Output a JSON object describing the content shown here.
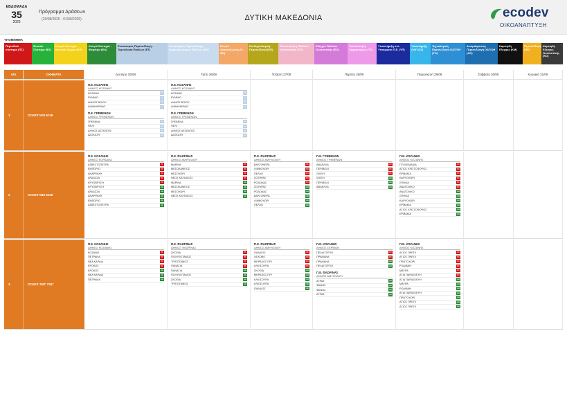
{
  "header": {
    "week_label": "ΕΒΔΟΜΑΔΑ",
    "week_number": "35",
    "year": "2025",
    "program_title": "Πρόγραμμα Δράσεων",
    "program_dates": "(25/08/2025 - 01/09/2025)",
    "region": "ΔΥΤΙΚΗ ΜΑΚΕΔΟΝΙΑ",
    "logo_word": "ecodev",
    "logo_sub": "ΟΙΚΟΑΝΑΠΤΥΞΗ",
    "logo_color": "#1d3a6e",
    "logo_accent": "#2e9a47"
  },
  "legend": {
    "title": "ΥΠΟΜΝΗΜΑ",
    "items": [
      {
        "label": "Περιοδικό σύστημα (ΠΣ)",
        "bg": "#d01818",
        "fg": "#ffffff",
        "w": 40
      },
      {
        "label": "Φυσικό Σύστημα (ΦΣ)",
        "bg": "#27b33b",
        "fg": "#ffffff",
        "w": 32
      },
      {
        "label": "Κινητό Σύστημα Κουτιού Χώρου (ΚΧ)",
        "bg": "#f2d21a",
        "fg": "#ffffff",
        "w": 48
      },
      {
        "label": "Κινητό Σύστημα - Φαρέτρα (ΦΑ)",
        "bg": "#2e8b3a",
        "fg": "#ffffff",
        "w": 42
      },
      {
        "label": "Εντοπισμός Περισυλλογή - Τεχνολογία Παιδιών (ΕΤ)",
        "bg": "#b9cfe6",
        "fg": "#222222",
        "w": 74
      },
      {
        "label": "Εντοπισμός Περισυλλογή Ανακυκλώσιμων Παιδιών (ΕΑ)",
        "bg": "#c9dbee",
        "fg": "#ffffff",
        "w": 74
      },
      {
        "label": "Κινητό Ανακύκλωσης (Κ-ΑΝ)",
        "bg": "#f4a867",
        "fg": "#ffffff",
        "w": 42
      },
      {
        "label": "Επιδημιολογική Περισυλλογή (ΕΠ)",
        "bg": "#b4a71c",
        "fg": "#ffffff",
        "w": 44
      },
      {
        "label": "Τακτοποίηση Παιδιών Ουσιαστικής (ΤΟ)",
        "bg": "#f2b6c9",
        "fg": "#ffffff",
        "w": 52
      },
      {
        "label": "Ελεγχοι Παιδιών Ουσιαστικής (ΕΟ)",
        "bg": "#d47ad9",
        "fg": "#ffffff",
        "w": 48
      },
      {
        "label": "Τακτοποίηση Σχηματισμών (ΤΣ)",
        "bg": "#ee9ae8",
        "fg": "#ffffff",
        "w": 42
      },
      {
        "label": "Υποστήριξη στο Υπουργείο Π.Ε. (ΥΠ)",
        "bg": "#1b2a9c",
        "fg": "#ffffff",
        "w": 48
      },
      {
        "label": "Υποστήριξη ΟΛΥ (ΟΣ)",
        "bg": "#37b6ea",
        "fg": "#ffffff",
        "w": 30
      },
      {
        "label": "Τεχνολογική Περισυλλογή OAT/OH (ΤΟ)",
        "bg": "#2f8fd4",
        "fg": "#ffffff",
        "w": 50
      },
      {
        "label": "Απομάκρυνση Περισυλλογή OAT/OH (ΑΟ)",
        "bg": "#1f6fb0",
        "fg": "#ffffff",
        "w": 47
      },
      {
        "label": "Καμπηλή Ελεγχος (ΚΜ)",
        "bg": "#111111",
        "fg": "#ffffff",
        "w": 36
      },
      {
        "label": "Περισυλλογή (ΠΕ)",
        "bg": "#f0b020",
        "fg": "#ffffff",
        "w": 27
      },
      {
        "label": "Καμπηλή Ελεγχος Ουσιαστικής (ΚΟ)",
        "bg": "#3a3a3a",
        "fg": "#ffffff",
        "w": 31
      }
    ]
  },
  "schedule": {
    "col_aa": "Α/Α",
    "col_vehicle": "ΟΧΗΜΑΤΑ",
    "days": [
      {
        "label": "Δευτέρα 25/08",
        "w": 120
      },
      {
        "label": "Τρίτη 26/08",
        "w": 120
      },
      {
        "label": "Τετάρτη 27/08",
        "w": 90
      },
      {
        "label": "Πέμπτη 28/08",
        "w": 120
      },
      {
        "label": "Παρασκευή 29/08",
        "w": 98
      },
      {
        "label": "Σάββατο 30/08",
        "w": 72
      },
      {
        "label": "Κυριακή 31/08",
        "w": 71
      }
    ],
    "rows": [
      {
        "aa": "1",
        "vehicle": "ΟΟΧΕΤ ΝΟΙ 9748",
        "h": 102,
        "days": [
          [
            {
              "unit": "Π.Ε. ΚΟΖΑΝΗΣ",
              "muni": "ΔΗΜΟΣ ΚΟΖΑΝΗΣ",
              "stops": [
                {
                  "n": "ΚΟΖΑΝΗ",
                  "t": "ΕΑ"
                },
                {
                  "n": "ΡΥΜΝΙΟ",
                  "t": "ΕΑ"
                },
                {
                  "n": "ΔΗΜΟΣ ΒΟΙΟΥ",
                  "t": "ΕΑ"
                },
                {
                  "n": "ΑΙΑΝΗ/ΚΕΝΑΣ",
                  "t": "ΕΑ"
                }
              ]
            },
            {
              "unit": "Π.Ε. ΓΡΕΒΕΝΩΝ",
              "muni": "ΔΗΜΟΣ ΓΡΕΒΕΝΩΝ",
              "stops": [
                {
                  "n": "ΓΡΕΒΕΝΑ",
                  "t": "ΕΑ"
                },
                {
                  "n": "ΦΕΛΙ",
                  "t": "ΕΑ"
                },
                {
                  "n": "ΔΗΜΟΣ ΔΕΣΚΑΤΗΣ",
                  "t": "ΕΑ"
                },
                {
                  "n": "ΔΕΣΚΑΤΗ",
                  "t": "ΕΑ"
                }
              ]
            }
          ],
          [
            {
              "unit": "Π.Ε. ΚΟΖΑΝΗΣ",
              "muni": "ΔΗΜΟΣ ΚΟΖΑΝΗΣ",
              "stops": [
                {
                  "n": "ΚΟΖΑΝΗ",
                  "t": "ΕΑ"
                },
                {
                  "n": "ΡΥΜΝΙΟ",
                  "t": "ΕΑ"
                },
                {
                  "n": "ΔΗΜΟΣ ΒΟΙΟΥ",
                  "t": "ΕΑ"
                },
                {
                  "n": "ΑΙΑΝΗ/ΚΕΝΑΣ",
                  "t": "ΕΑ"
                }
              ]
            },
            {
              "unit": "Π.Ε. ΓΡΕΒΕΝΩΝ",
              "muni": "ΔΗΜΟΣ ΓΡΕΒΕΝΩΝ",
              "stops": [
                {
                  "n": "ΓΡΕΒΕΝΑ",
                  "t": "ΕΑ"
                },
                {
                  "n": "ΦΕΛΙ",
                  "t": "ΕΑ"
                },
                {
                  "n": "ΔΗΜΟΣ ΔΕΣΚΑΤΗΣ",
                  "t": "ΕΑ"
                },
                {
                  "n": "ΔΕΣΚΑΤΗ",
                  "t": "ΕΑ"
                }
              ]
            }
          ],
          [],
          [],
          [],
          [],
          []
        ]
      },
      {
        "aa": "2",
        "vehicle": "ΟΟΧΕΤ ΜΕΙ 6438",
        "h": 126,
        "days": [
          [
            {
              "unit": "Π.Ε. ΚΟΖΑΝΗΣ",
              "muni": "ΔΗΜΟΣ ΕΟΡΔΑΙΑΣ",
              "stops": [
                {
                  "n": "ΑΣΒΕΣΤΟΠΕΤΡΑ",
                  "t": "ΠΣ"
                },
                {
                  "n": "ΕΜΠΟΡΙΟ",
                  "t": "ΠΣ"
                },
                {
                  "n": "ΑΝΑΡΡΑΧΗ",
                  "t": "ΠΣ"
                },
                {
                  "n": "ΑΡΔΑΣΣΑ",
                  "t": "ΠΣ"
                },
                {
                  "n": "ΚΡΥΟΒΡΥΣΗ",
                  "t": "ΠΣ"
                },
                {
                  "n": "ΚΡΥΟΒΡΥΣΗ",
                  "t": "ΑΘ"
                },
                {
                  "n": "ΑΡΔΑΣΣΑ",
                  "t": "ΑΘ"
                },
                {
                  "n": "ΑΝΑΡΡΑΧΗ",
                  "t": "ΑΘ"
                },
                {
                  "n": "ΕΜΠΟΡΙΟ",
                  "t": "ΑΘ"
                },
                {
                  "n": "ΑΣΒΕΣΤΟΠΕΤΡΑ",
                  "t": "ΑΘ"
                }
              ]
            }
          ],
          [
            {
              "unit": "Π.Ε. ΦΛΩΡΙΝΑΣ",
              "muni": "ΔΗΜΟΣ ΑΜΥΝΤΑΙΟΥ",
              "stops": [
                {
                  "n": "ΜΑΡΙΝΑ",
                  "t": "ΠΣ"
                },
                {
                  "n": "ΜΕΣΟΚΑΜΠΟΣ",
                  "t": "ΠΣ"
                },
                {
                  "n": "ΜΕΣΟΧΩΡΙ",
                  "t": "ΠΣ"
                },
                {
                  "n": "ΝΕΟΣ ΚΑΥΚΑΣΟΣ",
                  "t": "ΠΣ"
                },
                {
                  "n": "ΜΑΡΙΝΑ",
                  "t": "ΑΘ"
                },
                {
                  "n": "ΜΕΣΟΚΑΜΠΟΣ",
                  "t": "ΑΘ"
                },
                {
                  "n": "ΜΕΣΟΧΩΡΙ",
                  "t": "ΑΘ"
                },
                {
                  "n": "ΝΕΟΣ ΚΑΥΚΑΣΟΣ",
                  "t": "ΑΘ"
                }
              ]
            }
          ],
          [
            {
              "unit": "Π.Ε. ΦΛΩΡΙΝΑΣ",
              "muni": "ΔΗΜΟΣ ΑΜΥΝΤΑΙΟΥ",
              "stops": [
                {
                  "n": "ΒΑΛΤΟΝΕΡΑ",
                  "t": "ΠΣ"
                },
                {
                  "n": "ΛΙΜΝΟΧΩΡΙ",
                  "t": "ΠΣ"
                },
                {
                  "n": "ΠΕΛΛΟ",
                  "t": "ΠΣ"
                },
                {
                  "n": "ΣΩΤΗΡΑΣ",
                  "t": "ΠΣ"
                },
                {
                  "n": "ΡΟΔΩΝΑΣ",
                  "t": "ΠΣ"
                },
                {
                  "n": "ΣΩΤΗΡΑΣ",
                  "t": "ΑΘ"
                },
                {
                  "n": "ΡΟΔΩΝΑΣ",
                  "t": "ΑΘ"
                },
                {
                  "n": "ΒΑΛΤΟΝΕΡΑ",
                  "t": "ΑΘ"
                },
                {
                  "n": "ΛΙΜΝΟΧΩΡΙ",
                  "t": "ΑΘ"
                },
                {
                  "n": "ΠΕΛΛΟ",
                  "t": "ΑΘ"
                }
              ]
            }
          ],
          [
            {
              "unit": "Π.Ε. ΓΡΕΒΕΝΩΝ",
              "muni": "ΔΗΜΟΣ ΓΡΕΒΕΝΩΝ",
              "stops": [
                {
                  "n": "ΑΒΔΕΛΛΑ",
                  "t": "ΠΣ"
                },
                {
                  "n": "ΠΕΡΙΒΟΛΙ",
                  "t": "ΠΣ"
                },
                {
                  "n": "ΣΜΙΞΗ",
                  "t": "ΠΣ"
                },
                {
                  "n": "ΣΜΙΞΗ",
                  "t": "ΑΘ"
                },
                {
                  "n": "ΠΕΡΙΒΟΛΙ",
                  "t": "ΑΘ"
                },
                {
                  "n": "ΑΒΔΕΛΛΑ",
                  "t": "ΑΘ"
                }
              ]
            }
          ],
          [
            {
              "unit": "Π.Ε. ΚΟΖΑΝΗΣ",
              "muni": "ΔΗΜΟΣ ΚΟΖΑΝΗΣ",
              "stops": [
                {
                  "n": "ΠΤΟΛΕΜΑΪΔΑ",
                  "t": "ΠΣ"
                },
                {
                  "n": "ΑΓΙΟΣ ΧΡΙΣΤΟΦΟΡΟΣ",
                  "t": "ΠΣ"
                },
                {
                  "n": "ΕΡΜΑΚΙΑ",
                  "t": "ΠΣ"
                },
                {
                  "n": "ΚΑΡΥΟΧΩΡΙ",
                  "t": "ΠΣ"
                },
                {
                  "n": "ΣΠΗΛΙΑ",
                  "t": "ΠΣ"
                },
                {
                  "n": "ΑΝΑΤΟΛΙΚΟ",
                  "t": "ΠΣ"
                },
                {
                  "n": "ΑΝΑΤΟΛΙΚΟ",
                  "t": "ΑΘ"
                },
                {
                  "n": "ΣΠΗΛΙΑ",
                  "t": "ΑΘ"
                },
                {
                  "n": "ΚΑΡΥΟΧΩΡΙ",
                  "t": "ΑΘ"
                },
                {
                  "n": "ΕΡΜΑΚΙΑ",
                  "t": "ΑΘ"
                },
                {
                  "n": "ΑΓΙΟΣ ΧΡΙΣΤΟΦΟΡΟΣ",
                  "t": "ΑΘ"
                },
                {
                  "n": "ΕΡΜΑΚΙΑ",
                  "t": "ΑΘ"
                }
              ]
            }
          ],
          [],
          []
        ]
      },
      {
        "aa": "3",
        "vehicle": "ΟΟΧΕΤ ΖΜΤ 7387",
        "h": 130,
        "days": [
          [
            {
              "unit": "Π.Ε. ΚΟΖΑΝΗΣ",
              "muni": "ΔΗΜΟΣ ΚΟΖΑΝΗΣ",
              "stops": [
                {
                  "n": "ΚΟΖΑΝΗ",
                  "t": "ΠΣ"
                },
                {
                  "n": "ΠΕΤΡΑΝΑ",
                  "t": "ΠΣ"
                },
                {
                  "n": "ΝΕΑ ΚΑΡΔΙΑ",
                  "t": "ΠΣ"
                },
                {
                  "n": "ΚΡΟΚΟΣ",
                  "t": "ΠΣ"
                },
                {
                  "n": "ΚΡΟΚΟΣ",
                  "t": "ΑΘ"
                },
                {
                  "n": "ΝΕΑ ΚΑΡΔΙΑ",
                  "t": "ΑΘ"
                },
                {
                  "n": "ΠΕΤΡΑΝΑ",
                  "t": "ΑΘ"
                }
              ]
            }
          ],
          [
            {
              "unit": "Π.Ε. ΦΛΩΡΙΝΑΣ",
              "muni": "ΔΗΜΟΣ ΦΛΩΡΙΝΑΣ",
              "stops": [
                {
                  "n": "ΣΚΟΠΙΑ",
                  "t": "ΠΣ"
                },
                {
                  "n": "ΠΟΛΥΠΟΤΑΜΟΣ",
                  "t": "ΠΣ"
                },
                {
                  "n": "ΤΡΙΠΟΤΑΜΟΣ",
                  "t": "ΠΣ"
                },
                {
                  "n": "ΠΑΝΑΓΙΑ",
                  "t": "ΠΣ"
                },
                {
                  "n": "ΠΑΝΑΓΙΑ",
                  "t": "ΑΘ"
                },
                {
                  "n": "ΠΟΛΥΠΟΤΑΜΟΣ",
                  "t": "ΑΘ"
                },
                {
                  "n": "ΣΚΟΠΙΑ",
                  "t": "ΑΘ"
                },
                {
                  "n": "ΤΡΙΠΟΤΑΜΟΣ",
                  "t": "ΑΘ"
                }
              ]
            }
          ],
          [
            {
              "unit": "Π.Ε. ΦΛΩΡΙΝΑΣ",
              "muni": "ΔΗΜΟΣ ΑΜΥΝΤΑΙΟΥ",
              "stops": [
                {
                  "n": "ΠΑΛΑΙΟΣ",
                  "t": "ΠΣ"
                },
                {
                  "n": "ΛΕΧΟΒΟ",
                  "t": "ΠΣ"
                },
                {
                  "n": "ΜΕΡΑΧΟΣ ΠΡΙ",
                  "t": "ΠΣ"
                },
                {
                  "n": "ΚΛΕΙΣΟΥΡΑ",
                  "t": "ΠΣ"
                },
                {
                  "n": "ΣΚΟΠΙΑ",
                  "t": "ΑΘ"
                },
                {
                  "n": "ΜΕΡΑΧΟΣ ΠΡΙ",
                  "t": "ΑΘ"
                },
                {
                  "n": "ΚΛΕΙΣΟΥΡΑ",
                  "t": "ΑΘ"
                },
                {
                  "n": "ΚΛΕΙΣΟΥΡΑ",
                  "t": "ΑΘ"
                },
                {
                  "n": "ΠΑΛΑΙΟΣ",
                  "t": "ΑΘ"
                }
              ]
            }
          ],
          [
            {
              "unit": "Π.Ε. ΚΟΖΑΝΗΣ",
              "muni": "ΔΗΜΟΣ ΣΕΡΒΙΩΝ",
              "stops": [
                {
                  "n": "ΠΕΛΑΓΟΡΓΙΟ",
                  "t": "ΠΣ"
                },
                {
                  "n": "ΠΡΑΜΑΝΑ",
                  "t": "ΠΣ"
                },
                {
                  "n": "ΠΡΑΜΑΝΑ",
                  "t": "ΑΘ"
                },
                {
                  "n": "ΠΕΛΑΓΟΡΓΙΟ",
                  "t": "ΑΘ"
                }
              ]
            },
            {
              "unit": "Π.Ε. ΦΛΩΡΙΝΑΣ",
              "muni": "ΔΗΜΟΣ ΑΜΥΝΤΑΙΟΥ",
              "stops": [
                {
                  "n": "ΑΓΡΑΣ",
                  "t": "ΑΘ"
                },
                {
                  "n": "ΦΑΝΟΣ",
                  "t": "ΑΘ"
                },
                {
                  "n": "ΦΑΝΟΣ",
                  "t": "ΑΘ"
                },
                {
                  "n": "ΑΓΡΑΣ",
                  "t": "ΑΘ"
                }
              ]
            }
          ],
          [
            {
              "unit": "Π.Ε. ΚΟΖΑΝΗΣ",
              "muni": "ΔΗΜΟΣ ΚΟΖΑΝΗΣ",
              "stops": [
                {
                  "n": "ΑΓΙΟΣ ΠΡΕΠΙ",
                  "t": "ΠΣ"
                },
                {
                  "n": "ΑΓΙΟΣ ΠΡΕΠΙ",
                  "t": "ΠΣ"
                },
                {
                  "n": "ΠΡΩΤΟΧΩΡΙ",
                  "t": "ΠΣ"
                },
                {
                  "n": "ΡΟΔΙΑΝΗ",
                  "t": "ΠΣ"
                },
                {
                  "n": "ΜΑΥΡΑ",
                  "t": "ΠΣ"
                },
                {
                  "n": "ΑΓΙΑ ΠΑΡΑΣΚΕΥΗ",
                  "t": "ΠΣ"
                },
                {
                  "n": "ΑΓΙΑ ΠΑΡΑΣΚΕΥΗ",
                  "t": "ΑΘ"
                },
                {
                  "n": "ΜΑΥΡΑ",
                  "t": "ΑΘ"
                },
                {
                  "n": "ΡΟΔΙΑΝΗ",
                  "t": "ΑΘ"
                },
                {
                  "n": "ΑΓΙΑ ΠΑΡΑΣΚΕΥΗ",
                  "t": "ΑΘ"
                },
                {
                  "n": "ΠΡΩΤΟΧΩΡΙ",
                  "t": "ΑΘ"
                },
                {
                  "n": "ΑΓΙΟΣ ΠΡΕΠΙ",
                  "t": "ΑΘ"
                },
                {
                  "n": "ΑΓΙΟΣ ΠΡΕΠΙ",
                  "t": "ΑΘ"
                }
              ]
            }
          ],
          [],
          []
        ]
      }
    ]
  },
  "tag_colors": {
    "ΠΣ": "#d01818",
    "ΑΘ": "#2e8b3a",
    "ΕΑ": "#b9cfe6"
  }
}
